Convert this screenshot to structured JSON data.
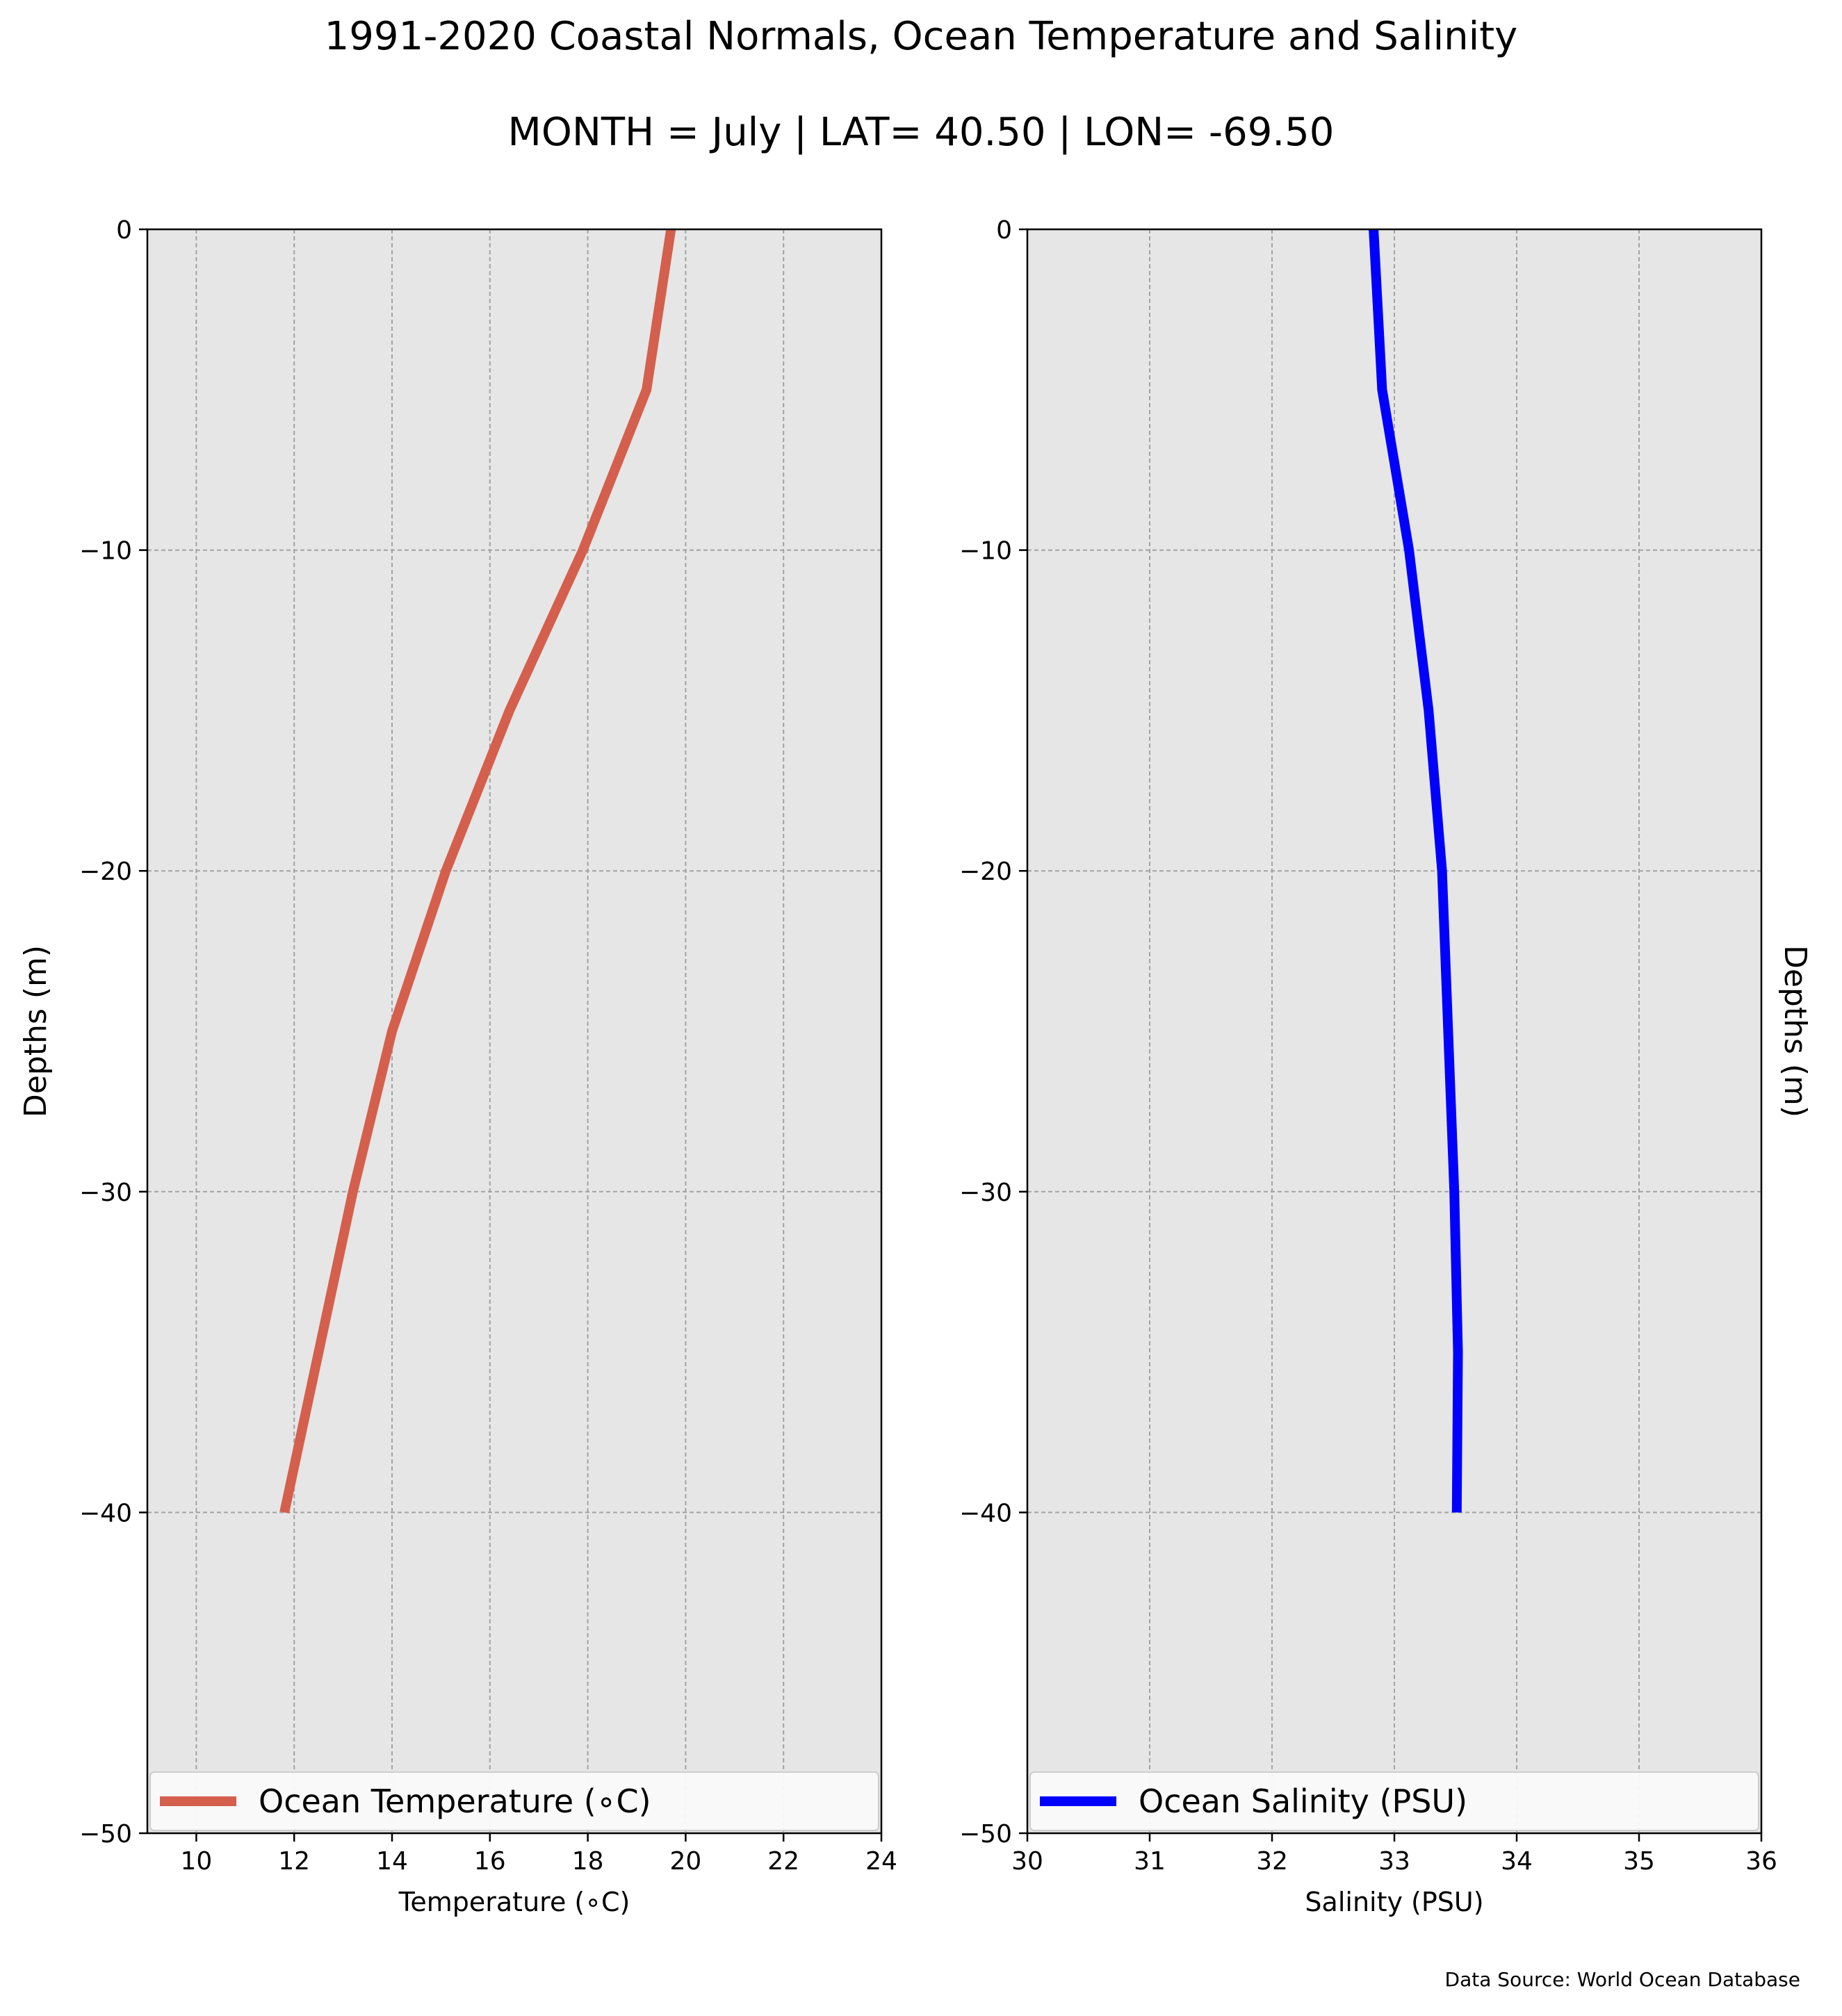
{
  "title_line_1": "1991-2020 Coastal Normals, Ocean Temperature and Salinity",
  "title_line_2": "MONTH = July | LAT= 40.50 | LON= -69.50",
  "source_note": "Data Source: World Ocean Database",
  "chart_data": [
    {
      "type": "line",
      "xlabel": "Temperature (∘C)",
      "ylabel": "Depths (m)",
      "ylabel_side": "left",
      "xlim": [
        9,
        24
      ],
      "ylim": [
        -50,
        0
      ],
      "xticks": [
        10,
        12,
        14,
        16,
        18,
        20,
        22,
        24
      ],
      "yticks": [
        0,
        -10,
        -20,
        -30,
        -40,
        -50
      ],
      "grid": true,
      "legend_position": "bottom",
      "series": [
        {
          "name": "Ocean Temperature (∘C)",
          "color": "#d45f4d",
          "x": [
            19.7,
            19.2,
            17.9,
            16.4,
            15.1,
            14.0,
            13.2,
            12.5,
            11.8
          ],
          "y": [
            0,
            -5,
            -10,
            -15,
            -20,
            -25,
            -30,
            -35,
            -40
          ]
        }
      ]
    },
    {
      "type": "line",
      "xlabel": "Salinity (PSU)",
      "ylabel": "Depths (m)",
      "ylabel_side": "right",
      "xlim": [
        30,
        36
      ],
      "ylim": [
        -50,
        0
      ],
      "xticks": [
        30,
        31,
        32,
        33,
        34,
        35,
        36
      ],
      "yticks": [
        0,
        -10,
        -20,
        -30,
        -40,
        -50
      ],
      "grid": true,
      "legend_position": "bottom",
      "series": [
        {
          "name": "Ocean Salinity (PSU)",
          "color": "#0000ff",
          "x": [
            32.83,
            32.9,
            33.12,
            33.28,
            33.39,
            33.44,
            33.49,
            33.52,
            33.51
          ],
          "y": [
            0,
            -5,
            -10,
            -15,
            -20,
            -25,
            -30,
            -35,
            -40
          ]
        }
      ]
    }
  ]
}
